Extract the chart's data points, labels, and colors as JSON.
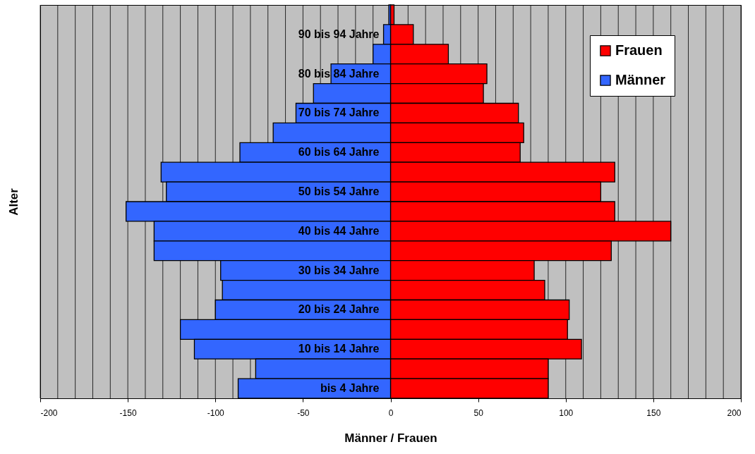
{
  "chart_data": {
    "type": "bar",
    "orientation": "horizontal",
    "xlabel": "Männer / Frauen",
    "ylabel": "Alter",
    "categories": [
      null,
      "90 bis 94 Jahre",
      null,
      "80 bis 84 Jahre",
      null,
      "70 bis 74 Jahre",
      null,
      "60 bis 64 Jahre",
      null,
      "50 bis 54 Jahre",
      null,
      "40 bis 44 Jahre",
      null,
      "30 bis 34 Jahre",
      null,
      "20 bis 24 Jahre",
      null,
      "10 bis 14 Jahre",
      null,
      "bis 4 Jahre"
    ],
    "series": [
      {
        "name": "Frauen",
        "color": "#ff0000",
        "values": [
          2,
          13,
          33,
          55,
          53,
          73,
          76,
          74,
          128,
          120,
          128,
          160,
          126,
          82,
          88,
          102,
          101,
          109,
          90,
          90
        ]
      },
      {
        "name": "Männer",
        "color": "#3366ff",
        "values": [
          -1,
          -4,
          -10,
          -34,
          -44,
          -54,
          -67,
          -86,
          -131,
          -128,
          -151,
          -135,
          -135,
          -97,
          -96,
          -100,
          -120,
          -112,
          -77,
          -87
        ]
      }
    ],
    "xlim": [
      -200,
      200
    ],
    "xticks": [
      -200,
      {
        "value": -190,
        "label": null
      },
      {
        "value": -180,
        "label": null
      },
      {
        "value": -170,
        "label": null
      },
      {
        "value": -160,
        "label": null
      },
      -150,
      {
        "value": -140,
        "label": null
      },
      {
        "value": -130,
        "label": null
      },
      {
        "value": -120,
        "label": null
      },
      {
        "value": -110,
        "label": null
      },
      -100,
      {
        "value": -90,
        "label": null
      },
      {
        "value": -80,
        "label": null
      },
      {
        "value": -70,
        "label": null
      },
      {
        "value": -60,
        "label": null
      },
      -50,
      {
        "value": -40,
        "label": null
      },
      {
        "value": -30,
        "label": null
      },
      {
        "value": -20,
        "label": null
      },
      {
        "value": -10,
        "label": null
      },
      0,
      {
        "value": 10,
        "label": null
      },
      {
        "value": 20,
        "label": null
      },
      {
        "value": 30,
        "label": null
      },
      {
        "value": 40,
        "label": null
      },
      50,
      {
        "value": 60,
        "label": null
      },
      {
        "value": 70,
        "label": null
      },
      {
        "value": 80,
        "label": null
      },
      {
        "value": 90,
        "label": null
      },
      100,
      {
        "value": 110,
        "label": null
      },
      {
        "value": 120,
        "label": null
      },
      {
        "value": 130,
        "label": null
      },
      {
        "value": 140,
        "label": null
      },
      150,
      {
        "value": 160,
        "label": null
      },
      {
        "value": 170,
        "label": null
      },
      {
        "value": 180,
        "label": null
      },
      {
        "value": 190,
        "label": null
      },
      200
    ],
    "grid": "x",
    "legend": "top right",
    "stacked": true
  }
}
